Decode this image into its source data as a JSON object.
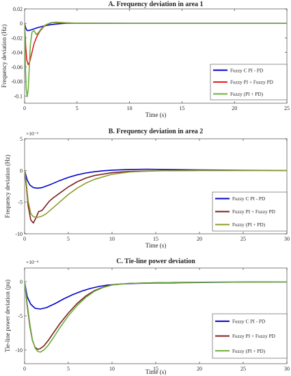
{
  "chart_data": [
    {
      "type": "line",
      "title": "A. Frequency deviation in area 1",
      "xlabel": "Time (s)",
      "ylabel": "Frequency deviation (Hz)",
      "xlim": [
        0,
        25
      ],
      "ylim": [
        -0.11,
        0.02
      ],
      "x_ticks": [
        0,
        5,
        10,
        15,
        20,
        25
      ],
      "y_ticks": [
        0.02,
        0,
        -0.02,
        -0.04,
        -0.06,
        -0.08,
        -0.1
      ],
      "y_tick_labels": [
        "0.02",
        "0",
        "-0.02",
        "-0.04",
        "-0.06",
        "-0.08",
        "-0.1"
      ],
      "y_scale_label": "",
      "legend_position": "right",
      "series": [
        {
          "name": "Fuzzy C PI - PD",
          "color": "#0000cc",
          "x": [
            0,
            0.1,
            0.2,
            0.3,
            0.5,
            0.8,
            1.2,
            1.6,
            2.0,
            2.5,
            3.0,
            3.5,
            4.0,
            5.0,
            6.0,
            8.0,
            10,
            15,
            25
          ],
          "y": [
            0,
            -0.006,
            -0.009,
            -0.01,
            -0.0095,
            -0.008,
            -0.006,
            -0.0045,
            -0.003,
            -0.0018,
            -0.0009,
            -0.0003,
            0.0001,
            0.0003,
            0.0002,
            0.0001,
            0,
            0,
            0
          ]
        },
        {
          "name": "Fuzzy PI + Fuzzy PD",
          "color": "#e01b1b",
          "x": [
            0,
            0.1,
            0.2,
            0.35,
            0.5,
            0.7,
            0.9,
            1.2,
            1.5,
            1.8,
            2.2,
            2.6,
            3.0,
            4.0,
            5.0,
            6.0,
            8.0,
            10,
            25
          ],
          "y": [
            0,
            -0.03,
            -0.05,
            -0.057,
            -0.052,
            -0.04,
            -0.028,
            -0.017,
            -0.01,
            -0.005,
            -0.001,
            0.001,
            0.0015,
            0.0008,
            0.0003,
            0.0001,
            0,
            0,
            0
          ]
        },
        {
          "name": "Fuzzy (PI + PD)",
          "color": "#6aae3a",
          "x": [
            0,
            0.08,
            0.15,
            0.25,
            0.35,
            0.45,
            0.55,
            0.7,
            0.9,
            1.1,
            1.3,
            1.6,
            2.0,
            2.5,
            3.0,
            4.0,
            6.0,
            10,
            25
          ],
          "y": [
            0,
            -0.06,
            -0.09,
            -0.101,
            -0.09,
            -0.06,
            -0.03,
            -0.012,
            -0.01,
            -0.015,
            -0.013,
            -0.007,
            -0.002,
            0.001,
            0.0012,
            0.0006,
            0.0001,
            0,
            0
          ]
        }
      ]
    },
    {
      "type": "line",
      "title": "B. Frequency deviation in area 2",
      "xlabel": "Time (s)",
      "ylabel": "Frequency deviation (Hz)",
      "xlim": [
        0,
        30
      ],
      "ylim": [
        -10,
        5
      ],
      "x_ticks": [
        0,
        5,
        10,
        15,
        20,
        25,
        30
      ],
      "y_ticks": [
        5,
        0,
        -5,
        -10
      ],
      "y_tick_labels": [
        "5",
        "0",
        "-5",
        "-10"
      ],
      "y_scale_label": "×10⁻³",
      "legend_position": "right",
      "series": [
        {
          "name": "Fuzzy C PI - PD",
          "color": "#0000cc",
          "x": [
            0,
            0.3,
            0.6,
            1.0,
            1.5,
            2.0,
            3.0,
            4.0,
            5.0,
            6.0,
            7.0,
            8.0,
            9.0,
            10,
            12,
            14,
            16,
            20,
            25,
            30
          ],
          "y": [
            0,
            -1.5,
            -2.3,
            -2.7,
            -2.8,
            -2.7,
            -2.2,
            -1.6,
            -1.1,
            -0.7,
            -0.4,
            -0.2,
            -0.05,
            0.05,
            0.15,
            0.2,
            0.15,
            0.08,
            0.02,
            0
          ]
        },
        {
          "name": "Fuzzy PI + Fuzzy PD",
          "color": "#7a1d1d",
          "x": [
            0,
            0.2,
            0.4,
            0.7,
            1.0,
            1.3,
            1.6,
            2.0,
            2.4,
            2.8,
            3.2,
            4.0,
            5.0,
            6.0,
            7.0,
            8.0,
            10,
            12,
            15,
            20,
            25,
            30
          ],
          "y": [
            0,
            -2.5,
            -5.5,
            -7.8,
            -8.3,
            -7.5,
            -6.5,
            -6.3,
            -5.6,
            -4.9,
            -4.4,
            -3.6,
            -2.6,
            -1.8,
            -1.2,
            -0.8,
            -0.35,
            -0.15,
            -0.05,
            0,
            0,
            0
          ]
        },
        {
          "name": "Fuzzy (PI + PD)",
          "color": "#8c9a2a",
          "x": [
            0,
            0.2,
            0.4,
            0.7,
            1.0,
            1.5,
            2.0,
            2.5,
            3.0,
            4.0,
            5.0,
            6.0,
            7.0,
            8.0,
            10,
            12,
            15,
            20,
            25,
            30
          ],
          "y": [
            0,
            -2.0,
            -4.8,
            -6.8,
            -7.3,
            -7.4,
            -7.2,
            -6.8,
            -6.2,
            -5.0,
            -3.8,
            -2.8,
            -2.0,
            -1.4,
            -0.6,
            -0.25,
            -0.05,
            0,
            0,
            0
          ]
        }
      ]
    },
    {
      "type": "line",
      "title": "C. Tie-line power deviation",
      "xlabel": "Time (s)",
      "ylabel": "Tie-line power deviation (pu)",
      "xlim": [
        0,
        30
      ],
      "ylim": [
        -12,
        2
      ],
      "x_ticks": [
        0,
        5,
        10,
        15,
        20,
        25,
        30
      ],
      "y_ticks": [
        0,
        -5,
        -10
      ],
      "y_tick_labels": [
        "0",
        "-5",
        "-10"
      ],
      "y_scale_label": "×10⁻⁴",
      "legend_position": "right",
      "series": [
        {
          "name": "Fuzzy C PI - PD",
          "color": "#0000cc",
          "x": [
            0,
            0.3,
            0.7,
            1.2,
            1.8,
            2.5,
            3.5,
            4.5,
            5.5,
            6.5,
            7.5,
            8.5,
            9.5,
            11,
            13,
            15,
            18,
            22,
            26,
            30
          ],
          "y": [
            0,
            -2.2,
            -3.3,
            -3.9,
            -4.0,
            -3.8,
            -3.2,
            -2.5,
            -1.9,
            -1.4,
            -1.0,
            -0.7,
            -0.5,
            -0.35,
            -0.25,
            -0.2,
            -0.15,
            -0.1,
            -0.05,
            -0.03
          ]
        },
        {
          "name": "Fuzzy PI + Fuzzy PD",
          "color": "#7a1d1d",
          "x": [
            0,
            0.3,
            0.6,
            0.9,
            1.2,
            1.5,
            1.8,
            2.2,
            2.7,
            3.3,
            4.0,
            5.0,
            6.0,
            7.0,
            8.0,
            9.0,
            10,
            12,
            15,
            20,
            25,
            30
          ],
          "y": [
            0,
            -3.5,
            -6.5,
            -8.6,
            -9.6,
            -9.9,
            -9.8,
            -9.4,
            -8.6,
            -7.5,
            -6.2,
            -4.6,
            -3.2,
            -2.1,
            -1.3,
            -0.8,
            -0.45,
            -0.25,
            -0.15,
            -0.08,
            -0.05,
            -0.03
          ]
        },
        {
          "name": "Fuzzy (PI + PD)",
          "color": "#6aae3a",
          "x": [
            0,
            0.3,
            0.6,
            0.9,
            1.2,
            1.5,
            1.8,
            2.2,
            2.7,
            3.3,
            4.0,
            5.0,
            6.0,
            7.0,
            8.0,
            9.0,
            10,
            12,
            15,
            20,
            25,
            30
          ],
          "y": [
            0,
            -3.2,
            -6.2,
            -8.5,
            -9.7,
            -10.2,
            -10.3,
            -10.0,
            -9.3,
            -8.2,
            -6.8,
            -5.0,
            -3.5,
            -2.3,
            -1.4,
            -0.85,
            -0.5,
            -0.25,
            -0.15,
            -0.08,
            -0.05,
            -0.03
          ]
        }
      ]
    }
  ]
}
